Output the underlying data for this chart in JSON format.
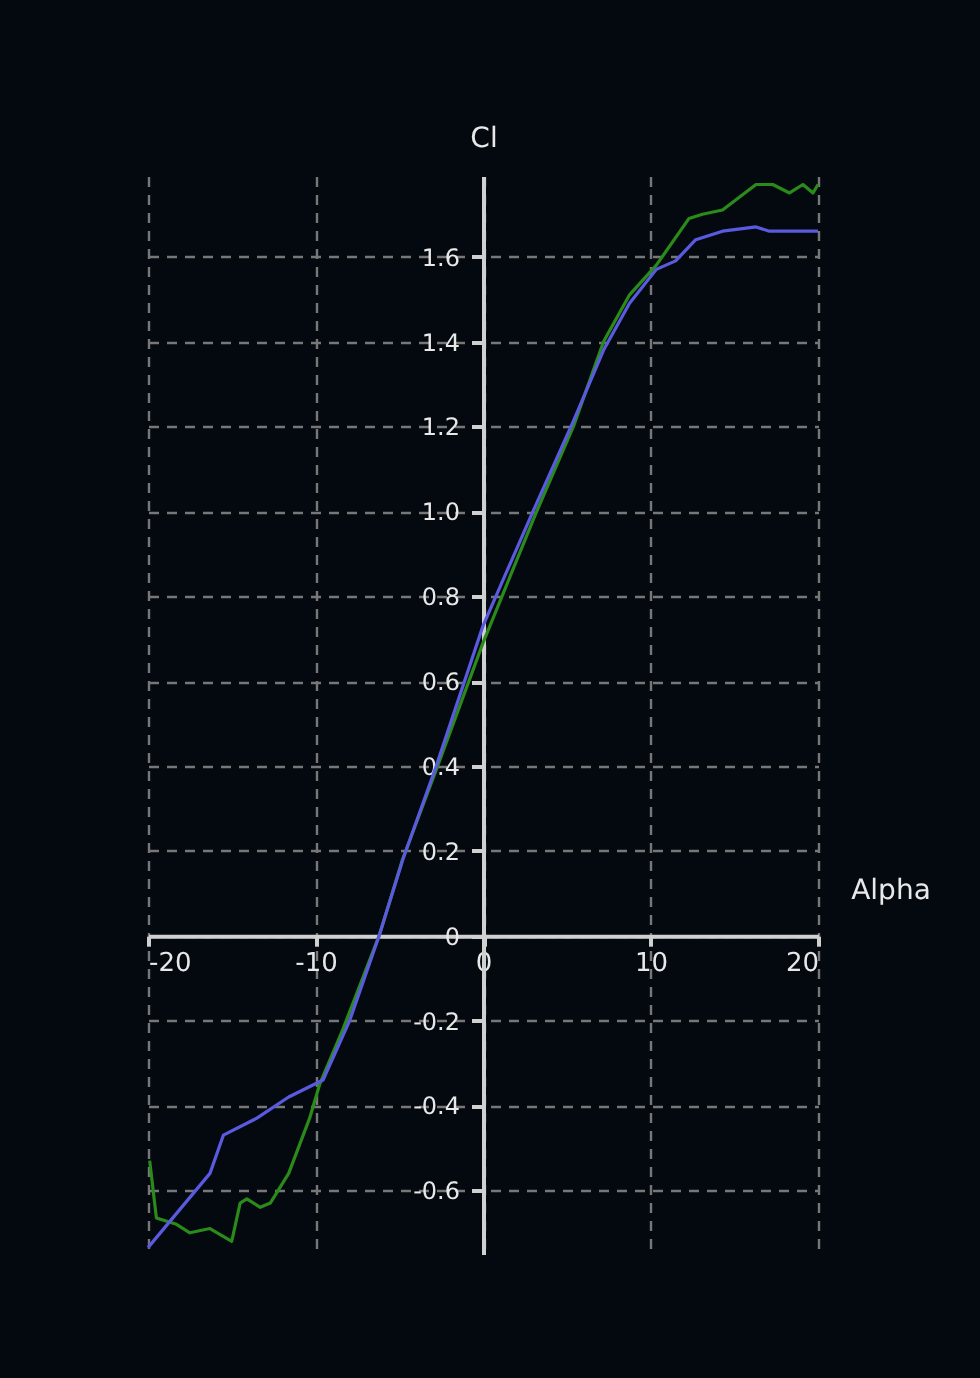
{
  "chart_data": {
    "type": "line",
    "xlabel": "Alpha",
    "ylabel": "Cl",
    "xlim": [
      -20,
      20
    ],
    "xticks": [
      -20,
      -10,
      0,
      10,
      20
    ],
    "ylim": [
      -0.75,
      1.79
    ],
    "yticks": [
      -0.6,
      -0.4,
      -0.2,
      0,
      0.2,
      0.4,
      {
        "value": 0.6,
        "label": "0.6"
      },
      0.8,
      {
        "value": 1,
        "label": "1.0"
      },
      1.2,
      1.4,
      1.6
    ],
    "grid": true,
    "line_style": "solid",
    "marker": "none",
    "series": [
      {
        "color": "#2a8a1a",
        "x": [
          -19.9,
          -19.5,
          -18.3,
          -17.5,
          -16.3,
          -15,
          -14.5,
          -14.1,
          -13.3,
          -12.7,
          -11.6,
          -10.35,
          -9.75,
          -8.36,
          -6.2,
          -4.8,
          -2.8,
          0,
          3.1,
          5.4,
          7.2,
          8.75,
          10.35,
          12.3,
          13.1,
          14.3,
          16.3,
          17.3,
          18.3,
          19.1,
          19.7,
          20
        ],
        "values": [
          -0.53,
          -0.665,
          -0.68,
          -0.7,
          -0.69,
          -0.72,
          -0.63,
          -0.62,
          -0.64,
          -0.63,
          -0.56,
          -0.43,
          -0.35,
          -0.22,
          0,
          0.18,
          0.39,
          0.69,
          0.99,
          1.2,
          1.4,
          1.51,
          1.58,
          1.69,
          1.7,
          1.71,
          1.77,
          1.77,
          1.75,
          1.77,
          1.75,
          1.77
        ]
      },
      {
        "color": "#5a5ae0",
        "x": [
          -20,
          -16.3,
          -15.5,
          -13.5,
          -11.6,
          -9.55,
          -7.96,
          -6.2,
          -4.78,
          -2.79,
          0,
          3.1,
          5.37,
          7.2,
          8.75,
          10.35,
          11.5,
          12.7,
          14.3,
          16.3,
          17.1,
          20
        ],
        "values": [
          -0.735,
          -0.56,
          -0.47,
          -0.43,
          -0.38,
          -0.34,
          -0.2,
          0,
          0.18,
          0.4,
          0.73,
          1.01,
          1.21,
          1.38,
          1.49,
          1.57,
          1.59,
          1.64,
          1.66,
          1.67,
          1.66,
          1.66
        ]
      }
    ]
  }
}
